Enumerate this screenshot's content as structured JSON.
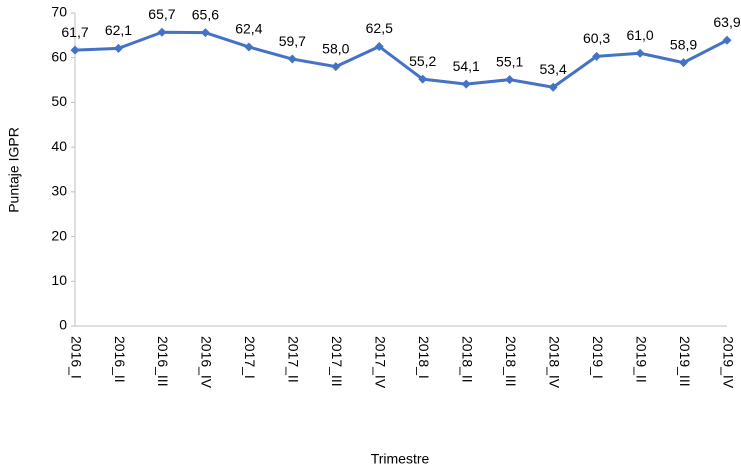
{
  "chart_data": {
    "type": "line",
    "x_label": "Trimestre",
    "y_label": "Puntaje IGPR",
    "categories": [
      "2016_I",
      "2016_II",
      "2016_III",
      "2016_IV",
      "2017_I",
      "2017_II",
      "2017_III",
      "2017_IV",
      "2018_I",
      "2018_II",
      "2018_III",
      "2018_IV",
      "2019_I",
      "2019_II",
      "2019_III",
      "2019_IV"
    ],
    "series": [
      {
        "name": "Puntaje IGPR",
        "color": "#4472c4",
        "values": [
          61.7,
          62.1,
          65.7,
          65.6,
          62.4,
          59.7,
          58.0,
          62.5,
          55.2,
          54.1,
          55.1,
          53.4,
          60.3,
          61.0,
          58.9,
          63.9
        ],
        "value_labels": [
          "61,7",
          "62,1",
          "65,7",
          "65,6",
          "62,4",
          "59,7",
          "58,0",
          "62,5",
          "55,2",
          "54,1",
          "55,1",
          "53,4",
          "60,3",
          "61,0",
          "58,9",
          "63,9"
        ]
      }
    ],
    "ylim": [
      0,
      70
    ],
    "yticks": [
      0,
      10,
      20,
      30,
      40,
      50,
      60,
      70
    ],
    "grid": false
  }
}
